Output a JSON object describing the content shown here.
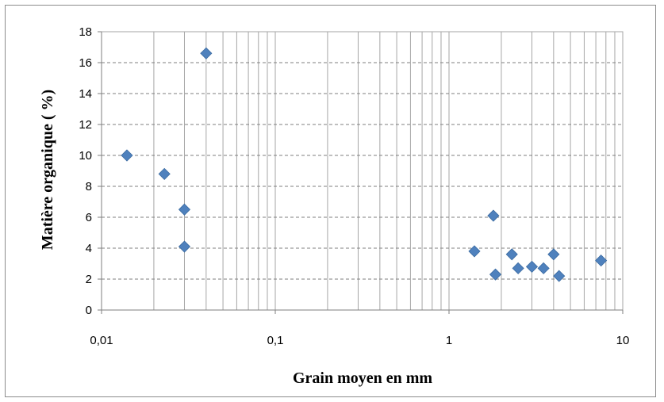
{
  "chart_data": {
    "type": "scatter",
    "title": "",
    "xlabel": "Grain moyen en mm",
    "ylabel": "Matière organique ( %)",
    "xscale": "log",
    "xlim": [
      0.01,
      10
    ],
    "ylim": [
      0,
      18
    ],
    "x_ticks": [
      {
        "value": 0.01,
        "label": "0,01"
      },
      {
        "value": 0.1,
        "label": "0,1"
      },
      {
        "value": 1,
        "label": "1"
      },
      {
        "value": 10,
        "label": "10"
      }
    ],
    "y_ticks": [
      {
        "value": 0,
        "label": "0"
      },
      {
        "value": 2,
        "label": "2"
      },
      {
        "value": 4,
        "label": "4"
      },
      {
        "value": 6,
        "label": "6"
      },
      {
        "value": 8,
        "label": "8"
      },
      {
        "value": 10,
        "label": "10"
      },
      {
        "value": 12,
        "label": "12"
      },
      {
        "value": 14,
        "label": "14"
      },
      {
        "value": 16,
        "label": "16"
      },
      {
        "value": 18,
        "label": "18"
      }
    ],
    "grid": true,
    "legend": "none",
    "marker": "diamond",
    "marker_color": "#4f81bd",
    "gridline_color": "#a6a6a6",
    "points": [
      {
        "x": 0.014,
        "y": 10.0
      },
      {
        "x": 0.023,
        "y": 8.8
      },
      {
        "x": 0.03,
        "y": 6.5
      },
      {
        "x": 0.03,
        "y": 4.1
      },
      {
        "x": 0.04,
        "y": 16.6
      },
      {
        "x": 1.4,
        "y": 3.8
      },
      {
        "x": 1.8,
        "y": 6.1
      },
      {
        "x": 1.85,
        "y": 2.3
      },
      {
        "x": 2.3,
        "y": 3.6
      },
      {
        "x": 2.5,
        "y": 2.7
      },
      {
        "x": 3.0,
        "y": 2.8
      },
      {
        "x": 3.5,
        "y": 2.7
      },
      {
        "x": 4.0,
        "y": 3.6
      },
      {
        "x": 4.3,
        "y": 2.2
      },
      {
        "x": 7.5,
        "y": 3.2
      }
    ]
  }
}
